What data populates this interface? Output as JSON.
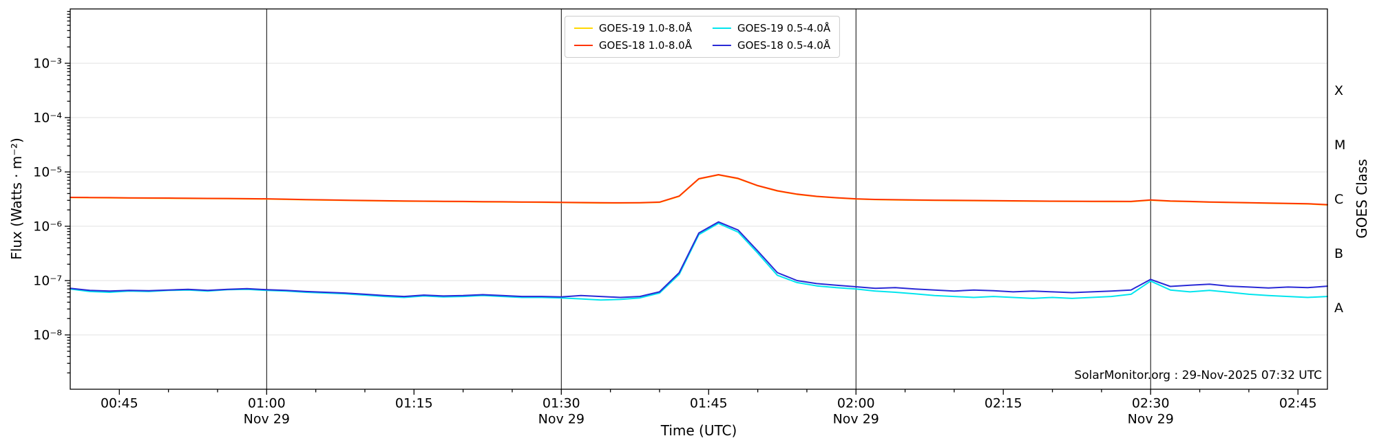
{
  "chart_data": {
    "type": "line",
    "title": "",
    "xlabel": "Time (UTC)",
    "ylabel": "Flux (Watts · m⁻²)",
    "ylabel_right": "GOES Class",
    "annotation": "SolarMonitor.org : 29-Nov-2025 07:32 UTC",
    "date": "Nov 29",
    "x_unit": "minutes after 00:00 UTC",
    "x_range": [
      40,
      168
    ],
    "x_start_label": "00:40",
    "x_end_label": "02:48",
    "y_scale": "log",
    "y_log_range": [
      -9,
      -2
    ],
    "grid_color": "#e0e0e0",
    "x_ticks": [
      {
        "t": 45,
        "label": "00:45",
        "sub": ""
      },
      {
        "t": 60,
        "label": "01:00",
        "sub": "Nov 29"
      },
      {
        "t": 75,
        "label": "01:15",
        "sub": ""
      },
      {
        "t": 90,
        "label": "01:30",
        "sub": "Nov 29"
      },
      {
        "t": 105,
        "label": "01:45",
        "sub": ""
      },
      {
        "t": 120,
        "label": "02:00",
        "sub": "Nov 29"
      },
      {
        "t": 135,
        "label": "02:15",
        "sub": ""
      },
      {
        "t": 150,
        "label": "02:30",
        "sub": "Nov 29"
      },
      {
        "t": 165,
        "label": "02:45",
        "sub": ""
      }
    ],
    "vlines": [
      60,
      90,
      120,
      150
    ],
    "y_ticks": [
      {
        "exp": -8,
        "label": "10⁻⁸"
      },
      {
        "exp": -7,
        "label": "10⁻⁷"
      },
      {
        "exp": -6,
        "label": "10⁻⁶"
      },
      {
        "exp": -5,
        "label": "10⁻⁵"
      },
      {
        "exp": -4,
        "label": "10⁻⁴"
      },
      {
        "exp": -3,
        "label": "10⁻³"
      }
    ],
    "goes_classes": [
      {
        "label": "A",
        "log_center": -7.5
      },
      {
        "label": "B",
        "log_center": -6.5
      },
      {
        "label": "C",
        "log_center": -5.5
      },
      {
        "label": "M",
        "log_center": -4.5
      },
      {
        "label": "X",
        "log_center": -3.5
      }
    ],
    "legend_position": "top-center",
    "t": [
      40,
      42,
      44,
      46,
      48,
      50,
      52,
      54,
      56,
      58,
      60,
      62,
      64,
      66,
      68,
      70,
      72,
      74,
      76,
      78,
      80,
      82,
      84,
      86,
      88,
      90,
      92,
      94,
      96,
      98,
      100,
      102,
      104,
      106,
      108,
      110,
      112,
      114,
      116,
      118,
      120,
      122,
      124,
      126,
      128,
      130,
      132,
      134,
      136,
      138,
      140,
      142,
      144,
      146,
      148,
      150,
      152,
      154,
      156,
      158,
      160,
      162,
      164,
      166,
      168
    ],
    "series": [
      {
        "name": "GOES-19 1.0-8.0Å",
        "color": "#ffd700",
        "scale": 1e-06,
        "values": [
          3.37,
          3.35,
          3.33,
          3.3,
          3.28,
          3.27,
          3.25,
          3.23,
          3.22,
          3.19,
          3.17,
          3.12,
          3.07,
          3.03,
          2.99,
          2.95,
          2.92,
          2.89,
          2.87,
          2.85,
          2.83,
          2.81,
          2.79,
          2.77,
          2.75,
          2.73,
          2.7,
          2.68,
          2.67,
          2.69,
          2.75,
          3.55,
          7.4,
          8.8,
          7.5,
          5.55,
          4.45,
          3.86,
          3.52,
          3.32,
          3.17,
          3.09,
          3.05,
          3.02,
          2.99,
          2.97,
          2.95,
          2.93,
          2.91,
          2.89,
          2.87,
          2.86,
          2.85,
          2.84,
          2.83,
          3.02,
          2.89,
          2.83,
          2.77,
          2.73,
          2.69,
          2.65,
          2.61,
          2.57,
          2.47
        ]
      },
      {
        "name": "GOES-18 1.0-8.0Å",
        "color": "#ff3300",
        "scale": 1e-06,
        "values": [
          3.4,
          3.38,
          3.36,
          3.33,
          3.31,
          3.3,
          3.28,
          3.26,
          3.25,
          3.22,
          3.2,
          3.15,
          3.1,
          3.06,
          3.02,
          2.98,
          2.95,
          2.92,
          2.9,
          2.88,
          2.86,
          2.84,
          2.82,
          2.8,
          2.78,
          2.76,
          2.73,
          2.71,
          2.7,
          2.72,
          2.78,
          3.6,
          7.5,
          8.9,
          7.6,
          5.6,
          4.5,
          3.9,
          3.55,
          3.35,
          3.2,
          3.12,
          3.08,
          3.05,
          3.02,
          3.0,
          2.98,
          2.96,
          2.94,
          2.92,
          2.9,
          2.89,
          2.88,
          2.87,
          2.86,
          3.05,
          2.92,
          2.86,
          2.8,
          2.76,
          2.72,
          2.68,
          2.64,
          2.6,
          2.5
        ]
      },
      {
        "name": "GOES-19 0.5-4.0Å",
        "color": "#00e5ee",
        "scale": 1e-08,
        "values": [
          7.0,
          6.3,
          6.1,
          6.4,
          6.3,
          6.6,
          6.7,
          6.4,
          6.8,
          6.9,
          6.6,
          6.4,
          6.1,
          5.9,
          5.7,
          5.4,
          5.1,
          4.9,
          5.2,
          5.0,
          5.1,
          5.3,
          5.1,
          4.9,
          4.9,
          4.8,
          4.6,
          4.4,
          4.5,
          4.8,
          5.9,
          13,
          70,
          113,
          78,
          32,
          12.5,
          9.2,
          8.0,
          7.4,
          7.0,
          6.4,
          6.1,
          5.7,
          5.3,
          5.1,
          4.9,
          5.1,
          4.9,
          4.7,
          4.9,
          4.7,
          4.9,
          5.1,
          5.6,
          9.8,
          6.7,
          6.2,
          6.6,
          6.1,
          5.6,
          5.3,
          5.1,
          4.9,
          5.1
        ]
      },
      {
        "name": "GOES-18 0.5-4.0Å",
        "color": "#2929d6",
        "scale": 1e-08,
        "values": [
          7.2,
          6.6,
          6.4,
          6.6,
          6.5,
          6.7,
          6.9,
          6.6,
          6.9,
          7.1,
          6.8,
          6.6,
          6.3,
          6.1,
          5.9,
          5.6,
          5.3,
          5.1,
          5.4,
          5.2,
          5.3,
          5.5,
          5.3,
          5.1,
          5.1,
          5.0,
          5.3,
          5.1,
          4.9,
          5.1,
          6.2,
          14,
          75,
          120,
          85,
          35,
          14,
          10,
          8.8,
          8.2,
          7.7,
          7.2,
          7.4,
          7.0,
          6.7,
          6.4,
          6.7,
          6.5,
          6.2,
          6.4,
          6.2,
          6.0,
          6.2,
          6.4,
          6.7,
          10.5,
          7.8,
          8.2,
          8.6,
          7.9,
          7.6,
          7.3,
          7.6,
          7.4,
          7.9
        ]
      }
    ]
  }
}
